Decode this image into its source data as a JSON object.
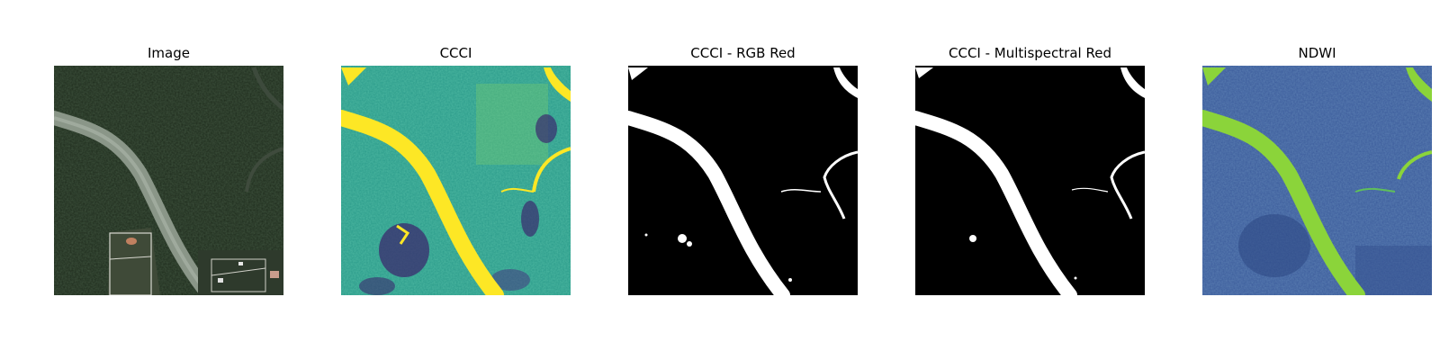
{
  "figure": {
    "panels": [
      {
        "title": "Image",
        "content": "aerial-rgb-image"
      },
      {
        "title": "CCCI",
        "content": "ccci-viridis-map"
      },
      {
        "title": "CCCI - RGB Red",
        "content": "binary-water-mask"
      },
      {
        "title": "CCCI - Multispectral Red",
        "content": "binary-water-mask"
      },
      {
        "title": "NDWI",
        "content": "ndwi-viridis-map"
      }
    ]
  },
  "colors": {
    "background": "#ffffff",
    "forest": "#1d2a1b",
    "river_rgb": "#8a9688",
    "viridis_mid": "#2a9a8a",
    "viridis_high": "#fde725",
    "viridis_low": "#3b2a6e",
    "mask_water": "#ffffff",
    "mask_land": "#000000",
    "ndwi_low": "#3a5a9a",
    "ndwi_high": "#8bd43a"
  }
}
